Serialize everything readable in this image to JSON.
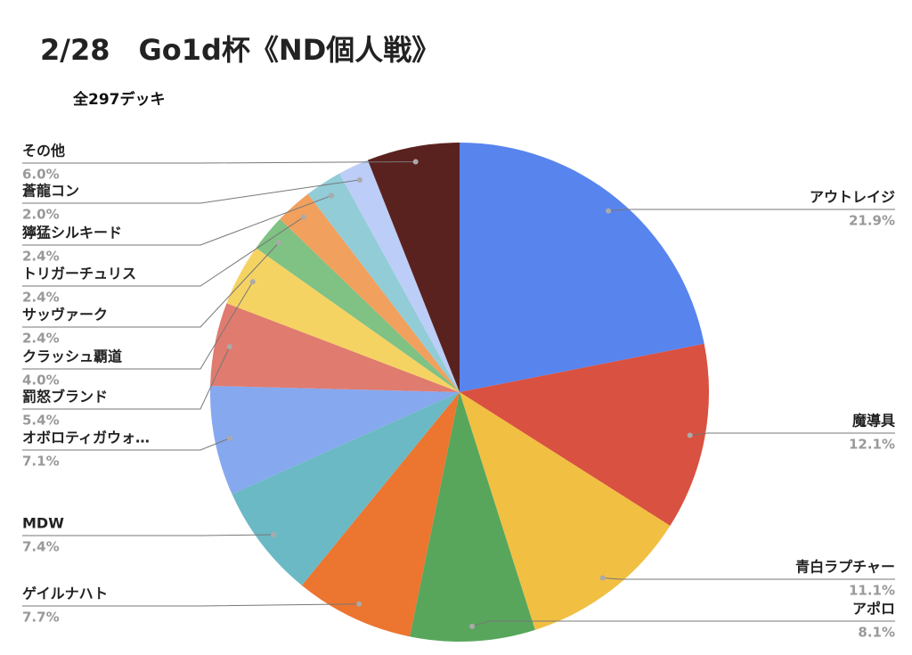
{
  "chart_data": {
    "type": "pie",
    "title": "2/28　Go1d杯《ND個人戦》",
    "subtitle": "全297デッキ",
    "categories": [
      "アウトレイジ",
      "魔導具",
      "青白ラプチャー",
      "アポロ",
      "ゲイルナハト",
      "MDW",
      "オボロティガウォ…",
      "罰怒ブランド",
      "クラッシュ覇道",
      "サッヴァーク",
      "トリガーチュリス",
      "獰猛シルキード",
      "蒼龍コン",
      "その他"
    ],
    "values": [
      21.9,
      12.1,
      11.1,
      8.1,
      7.7,
      7.4,
      7.1,
      5.4,
      4.0,
      2.4,
      2.4,
      2.4,
      2.0,
      6.0
    ],
    "value_labels": [
      "21.9%",
      "12.1%",
      "11.1%",
      "8.1%",
      "7.7%",
      "7.4%",
      "7.1%",
      "5.4%",
      "4.0%",
      "2.4%",
      "2.4%",
      "2.4%",
      "2.0%",
      "6.0%"
    ],
    "colors": [
      "#5884ee",
      "#d95140",
      "#f1bf42",
      "#58a65c",
      "#ec7530",
      "#6bb9c5",
      "#86a8ee",
      "#e07b6f",
      "#f5d363",
      "#80c184",
      "#f1a05d",
      "#92ccd7",
      "#bccdf7",
      "#5a221f"
    ]
  }
}
